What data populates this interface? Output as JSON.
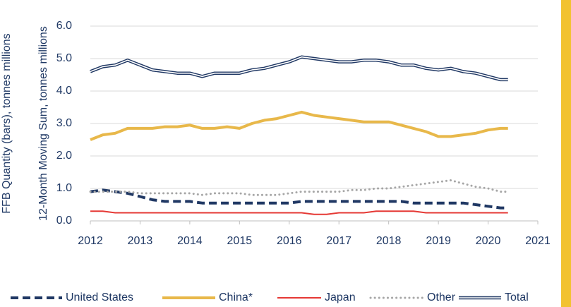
{
  "chart_data": {
    "type": "line",
    "y_label": "12-Month Moving Sum, tonnes millions",
    "y_label_secondary": "FFB Quantity (bars), tonnes millions",
    "x": [
      2012,
      2012.25,
      2012.5,
      2012.75,
      2013,
      2013.25,
      2013.5,
      2013.75,
      2014,
      2014.25,
      2014.5,
      2014.75,
      2015,
      2015.25,
      2015.5,
      2015.75,
      2016,
      2016.25,
      2016.5,
      2016.75,
      2017,
      2017.25,
      2017.5,
      2017.75,
      2018,
      2018.25,
      2018.5,
      2018.75,
      2019,
      2019.25,
      2019.5,
      2019.75,
      2020,
      2020.25,
      2020.4
    ],
    "series": [
      {
        "name": "United States",
        "color": "#203864",
        "style": "dashed",
        "values": [
          0.9,
          0.95,
          0.9,
          0.85,
          0.75,
          0.65,
          0.6,
          0.6,
          0.6,
          0.55,
          0.55,
          0.55,
          0.55,
          0.55,
          0.55,
          0.55,
          0.55,
          0.6,
          0.6,
          0.6,
          0.6,
          0.6,
          0.6,
          0.6,
          0.6,
          0.6,
          0.55,
          0.55,
          0.55,
          0.55,
          0.55,
          0.5,
          0.45,
          0.4,
          0.4
        ]
      },
      {
        "name": "China*",
        "color": "#e8b84a",
        "style": "solid",
        "values": [
          2.5,
          2.65,
          2.7,
          2.85,
          2.85,
          2.85,
          2.9,
          2.9,
          2.95,
          2.85,
          2.85,
          2.9,
          2.85,
          3.0,
          3.1,
          3.15,
          3.25,
          3.35,
          3.25,
          3.2,
          3.15,
          3.1,
          3.05,
          3.05,
          3.05,
          2.95,
          2.85,
          2.75,
          2.6,
          2.6,
          2.65,
          2.7,
          2.8,
          2.85,
          2.85
        ]
      },
      {
        "name": "Japan",
        "color": "#e53935",
        "style": "thin",
        "values": [
          0.3,
          0.3,
          0.25,
          0.25,
          0.25,
          0.25,
          0.25,
          0.25,
          0.25,
          0.25,
          0.25,
          0.25,
          0.25,
          0.25,
          0.25,
          0.25,
          0.25,
          0.25,
          0.2,
          0.2,
          0.25,
          0.25,
          0.25,
          0.3,
          0.3,
          0.3,
          0.3,
          0.25,
          0.25,
          0.25,
          0.25,
          0.25,
          0.25,
          0.25,
          0.25
        ]
      },
      {
        "name": "Other",
        "color": "#a6a6a6",
        "style": "dotted",
        "values": [
          0.9,
          0.9,
          0.9,
          0.9,
          0.85,
          0.85,
          0.85,
          0.85,
          0.85,
          0.8,
          0.85,
          0.85,
          0.85,
          0.8,
          0.8,
          0.8,
          0.85,
          0.9,
          0.9,
          0.9,
          0.9,
          0.95,
          0.95,
          1.0,
          1.0,
          1.05,
          1.1,
          1.15,
          1.2,
          1.25,
          1.15,
          1.05,
          1.0,
          0.9,
          0.9
        ]
      },
      {
        "name": "Total",
        "color": "#203864",
        "style": "double",
        "values": [
          4.6,
          4.75,
          4.8,
          4.95,
          4.8,
          4.65,
          4.6,
          4.55,
          4.55,
          4.45,
          4.55,
          4.55,
          4.55,
          4.65,
          4.7,
          4.8,
          4.9,
          5.05,
          5.0,
          4.95,
          4.9,
          4.9,
          4.95,
          4.95,
          4.9,
          4.8,
          4.8,
          4.7,
          4.65,
          4.7,
          4.6,
          4.55,
          4.45,
          4.35,
          4.35
        ]
      }
    ],
    "xlim": [
      2012,
      2021
    ],
    "xticks": [
      2012,
      2013,
      2014,
      2015,
      2016,
      2017,
      2018,
      2019,
      2020,
      2021
    ],
    "ylim": [
      0,
      6
    ],
    "yticks": [
      {
        "value": 0,
        "label": "0.0"
      },
      {
        "value": 1,
        "label": "1.0"
      },
      {
        "value": 2,
        "label": "2.0"
      },
      {
        "value": 3,
        "label": "3.0"
      },
      {
        "value": 4,
        "label": "4.0"
      },
      {
        "value": 5,
        "label": "5.0"
      },
      {
        "value": 6,
        "label": "6.0"
      }
    ],
    "grid": true,
    "legend": "bottom"
  }
}
